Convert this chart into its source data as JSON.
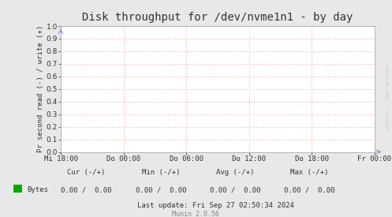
{
  "title": "Disk throughput for /dev/nvme1n1 - by day",
  "ylabel": "Pr second read (-) / write (+)",
  "bg_color": "#e8e8e8",
  "plot_bg_color": "#ffffff",
  "grid_color": "#ffaaaa",
  "border_color": "#aaaaaa",
  "ylim": [
    0.0,
    1.0
  ],
  "yticks": [
    0.0,
    0.1,
    0.2,
    0.3,
    0.4,
    0.5,
    0.6,
    0.7,
    0.8,
    0.9,
    1.0
  ],
  "xtick_labels": [
    "Mi 18:00",
    "Do 00:00",
    "Do 06:00",
    "Do 12:00",
    "Do 18:00",
    "Fr 00:00"
  ],
  "legend_label": "Bytes",
  "legend_color": "#00aa00",
  "cur_neg": "0.00",
  "cur_pos": "0.00",
  "min_neg": "0.00",
  "min_pos": "0.00",
  "avg_neg": "0.00",
  "avg_pos": "0.00",
  "max_neg": "0.00",
  "max_pos": "0.00",
  "last_update": "Last update: Fri Sep 27 02:50:34 2024",
  "munin_version": "Munin 2.0.56",
  "watermark": "RRDTOOL / TOBI OETIKER",
  "title_fontsize": 10,
  "label_fontsize": 6.5,
  "tick_fontsize": 6.5,
  "watermark_color": "#cccccc",
  "text_color": "#333333",
  "arrow_color": "#9999cc"
}
